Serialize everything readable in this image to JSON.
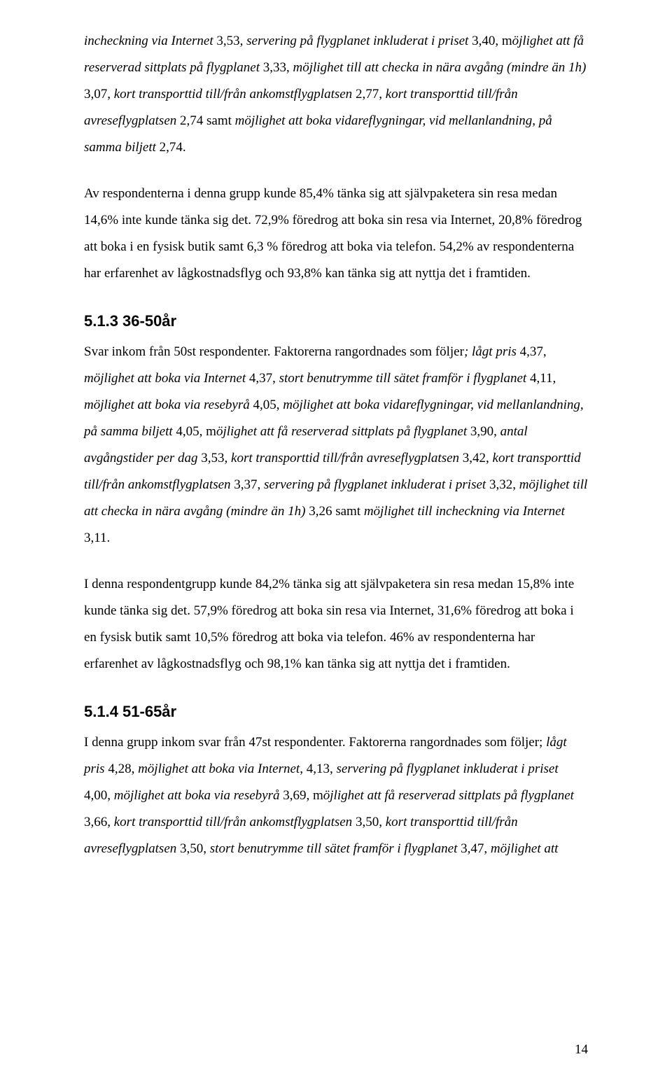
{
  "colors": {
    "text": "#000000",
    "background": "#ffffff"
  },
  "typography": {
    "body_family": "Times New Roman",
    "body_size_pt": 12,
    "heading_family": "Arial",
    "heading_size_pt": 14,
    "heading_weight": "bold",
    "line_height": 2.0
  },
  "para1": {
    "seg1_i": "incheckning via Internet",
    "seg1_r": " 3,53, ",
    "seg2_i": "servering på flygplanet inkluderat i priset",
    "seg2_r": " 3,40, m",
    "seg3_i": "öjlighet att få reserverad sittplats på flygplanet",
    "seg3_r": " 3,33, ",
    "seg4_i": "möjlighet till att checka in nära avgång (mindre än 1h)",
    "seg4_r": " 3,07, ",
    "seg5_i": "kort transporttid till/från ankomstflygplatsen",
    "seg5_r": " 2,77, ",
    "seg6_i": "kort transporttid till/från avreseflygplatsen",
    "seg6_r": " 2,74 samt ",
    "seg7_i": "möjlighet att boka vidareflygningar, vid mellanlandning, på samma biljett",
    "seg7_r": " 2,74."
  },
  "para2": "Av respondenterna i denna grupp kunde 85,4% tänka sig att självpaketera sin resa medan 14,6% inte kunde tänka sig det. 72,9% föredrog att boka sin resa via Internet, 20,8% föredrog att boka i en fysisk butik samt 6,3 % föredrog att boka via telefon. 54,2% av respondenterna har erfarenhet av lågkostnadsflyg och 93,8% kan tänka sig att nyttja det i framtiden.",
  "heading_513": "5.1.3 36-50år",
  "para3": {
    "seg1_r": "Svar inkom från 50st respondenter. Faktorerna rangordnades som följer",
    "seg2_i": "; lågt pris",
    "seg2_r": " 4,37, ",
    "seg3_i": "möjlighet att boka via Internet",
    "seg3_r": " 4,37, ",
    "seg4_i": "stort benutrymme till sätet framför i flygplanet",
    "seg4_r": " 4,11, ",
    "seg5_i": "möjlighet att boka via resebyrå",
    "seg5_r": " 4,05, ",
    "seg6_i": "möjlighet att boka vidareflygningar, vid mellanlandning, på samma biljett",
    "seg6_r": " 4,05, m",
    "seg7_i": "öjlighet att få reserverad sittplats på flygplanet",
    "seg7_r": " 3,90, ",
    "seg8_i": "antal avgångstider per dag",
    "seg8_r": " 3,53, ",
    "seg9_i": "kort transporttid till/från avreseflygplatsen",
    "seg9_r": " 3,42, ",
    "seg10_i": "kort transporttid till/från ankomstflygplatsen",
    "seg10_r": " 3,37, ",
    "seg11_i": "servering på flygplanet inkluderat i priset",
    "seg11_r": " 3,32, ",
    "seg12_i": "möjlighet till att checka in nära avgång (mindre än 1h)",
    "seg12_r": " 3,26 samt ",
    "seg13_i": "möjlighet till incheckning via Internet",
    "seg13_r": " 3,11."
  },
  "para4": "I denna respondentgrupp kunde 84,2% tänka sig att självpaketera sin resa medan 15,8% inte kunde tänka sig det. 57,9% föredrog att boka sin resa via Internet, 31,6% föredrog att boka i en fysisk butik samt 10,5% föredrog att boka via telefon. 46% av respondenterna har erfarenhet av lågkostnadsflyg och 98,1% kan tänka sig att nyttja det i framtiden.",
  "heading_514": "5.1.4 51-65år",
  "para5": {
    "seg1_r": "I denna grupp inkom svar från 47st respondenter. Faktorerna rangordnades som följer; ",
    "seg2_i": "lågt pris",
    "seg2_r": " 4,28, ",
    "seg3_i": "möjlighet att boka via Internet",
    "seg3_r": ", 4,13, ",
    "seg4_i": "servering på flygplanet inkluderat i priset",
    "seg4_r": " 4,00, ",
    "seg5_i": "möjlighet att boka via resebyrå",
    "seg5_r": " 3,69, m",
    "seg6_i": "öjlighet att få reserverad sittplats på flygplanet",
    "seg6_r": " 3,66, ",
    "seg7_i": "kort transporttid till/från ankomstflygplatsen",
    "seg7_r": " 3,50, ",
    "seg8_i": "kort transporttid till/från avreseflygplatsen",
    "seg8_r": " 3,50, ",
    "seg9_i": "stort benutrymme till sätet framför i flygplanet",
    "seg9_r": " 3,47, ",
    "seg10_i": "möjlighet att"
  },
  "page_number": "14"
}
